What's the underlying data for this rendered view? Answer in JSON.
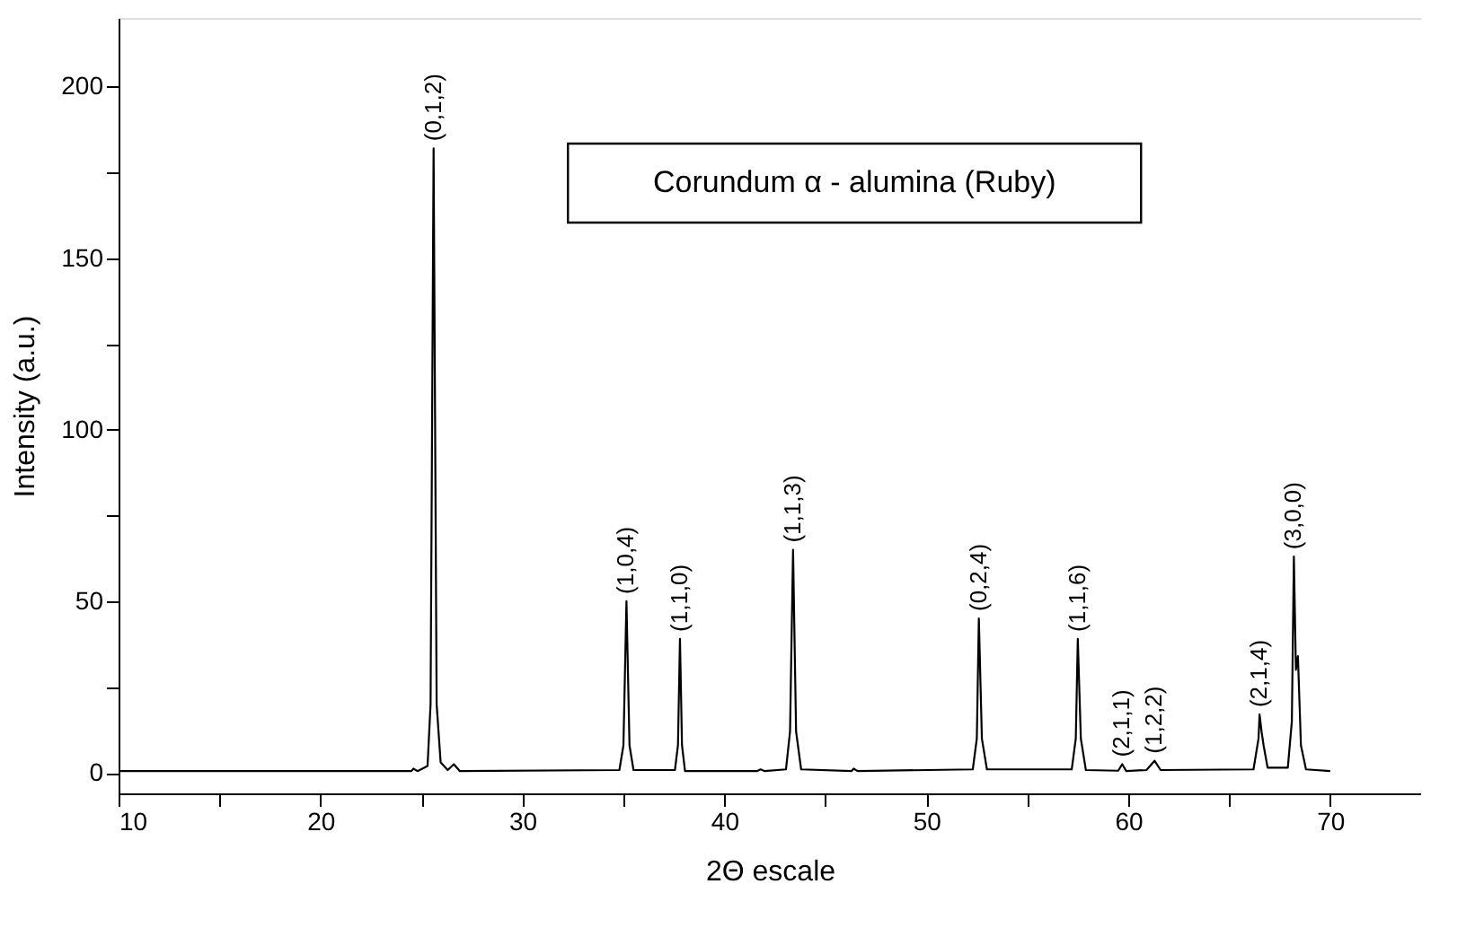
{
  "chart_data": {
    "type": "line",
    "xlabel": "2Θ escale",
    "ylabel": "Intensity (a.u.)",
    "x": [
      10,
      24.5,
      24.6,
      24.8,
      25.3,
      25.45,
      25.6,
      25.75,
      25.95,
      26.3,
      26.6,
      26.9,
      34.8,
      35.0,
      35.15,
      35.3,
      35.5,
      37.55,
      37.7,
      37.8,
      37.9,
      38.05,
      41.6,
      41.8,
      42.0,
      43.05,
      43.25,
      43.4,
      43.55,
      43.8,
      46.3,
      46.4,
      46.6,
      52.3,
      52.5,
      52.6,
      52.75,
      53.0,
      57.2,
      57.4,
      57.5,
      57.65,
      57.9,
      59.5,
      59.7,
      59.9,
      60.9,
      61.3,
      61.6,
      66.2,
      66.45,
      66.5,
      66.6,
      66.7,
      66.9,
      67.9,
      68.1,
      68.2,
      68.3,
      68.4,
      68.55,
      68.8,
      70
    ],
    "series": [
      {
        "color": "#000000",
        "values": [
          0.5,
          0.5,
          1.2,
          0.5,
          2,
          20,
          182,
          20,
          3,
          0.8,
          2.5,
          0.5,
          0.8,
          8,
          50,
          8,
          0.8,
          0.8,
          8,
          39,
          8,
          0.5,
          0.5,
          1,
          0.5,
          1,
          12,
          65,
          12,
          1,
          0.5,
          1.2,
          0.5,
          1,
          10,
          45,
          10,
          1,
          1,
          10,
          39,
          10,
          0.8,
          0.6,
          2.5,
          0.5,
          0.8,
          3.5,
          0.8,
          1,
          10,
          17,
          12,
          8,
          1.5,
          1.5,
          15,
          63,
          30,
          34,
          8,
          1,
          0.5
        ]
      }
    ],
    "xlim": [
      10,
      74.5
    ],
    "ylim": [
      -6,
      220
    ],
    "xticks": [
      10,
      {
        "value": 15,
        "label": null
      },
      20,
      {
        "value": 25,
        "label": null
      },
      30,
      {
        "value": 35,
        "label": null
      },
      40,
      {
        "value": 45,
        "label": null
      },
      50,
      {
        "value": 55,
        "label": null
      },
      60,
      {
        "value": 65,
        "label": null
      },
      70
    ],
    "yticks": [
      0,
      {
        "value": 25,
        "label": null
      },
      50,
      {
        "value": 75,
        "label": null
      },
      100,
      {
        "value": 125,
        "label": null
      },
      150,
      {
        "value": 175,
        "label": null
      },
      200
    ],
    "grid": false,
    "marker": "none",
    "line_style": "solid",
    "annotations": [
      "Corundum α - alumina  (Ruby)",
      {
        "text": "(0,1,2)",
        "x": 25.6,
        "y": 182
      },
      {
        "text": "(1,0,4)",
        "x": 35.15,
        "y": 50
      },
      {
        "text": "(1,1,0)",
        "x": 37.8,
        "y": 39
      },
      {
        "text": "(1,1,3)",
        "x": 43.4,
        "y": 65
      },
      {
        "text": "(0,2,4)",
        "x": 52.6,
        "y": 45
      },
      {
        "text": "(1,1,6)",
        "x": 57.5,
        "y": 39
      },
      {
        "text": "(2,1,1)",
        "x": 59.7,
        "y": 2.5
      },
      {
        "text": "(1,2,2)",
        "x": 61.3,
        "y": 3.5
      },
      {
        "text": "(2,1,4)",
        "x": 66.5,
        "y": 17
      },
      {
        "text": "(3,0,0)",
        "x": 68.2,
        "y": 63
      }
    ]
  }
}
